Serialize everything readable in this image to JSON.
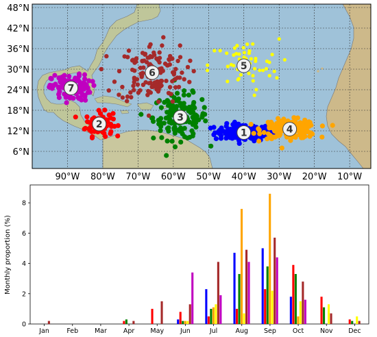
{
  "map": {
    "lat_ticks": [
      "48°N",
      "42°N",
      "36°N",
      "30°N",
      "24°N",
      "18°N",
      "12°N",
      "6°N"
    ],
    "lon_ticks": [
      "90°W",
      "80°W",
      "70°W",
      "60°W",
      "50°W",
      "40°W",
      "30°W",
      "20°W",
      "10°W"
    ],
    "clusters": [
      {
        "id": "1",
        "color": "#0000ff",
        "center": [
          -40,
          11.5
        ],
        "spread": [
          7.5,
          2.2
        ]
      },
      {
        "id": "2",
        "color": "#ff0000",
        "center": [
          -81,
          14
        ],
        "spread": [
          3.5,
          3.2
        ]
      },
      {
        "id": "3",
        "color": "#008000",
        "center": [
          -58,
          16
        ],
        "spread": [
          7,
          6
        ]
      },
      {
        "id": "4",
        "color": "#ffa500",
        "center": [
          -27,
          12.5
        ],
        "spread": [
          7,
          2.5
        ]
      },
      {
        "id": "5",
        "color": "#ffff00",
        "center": [
          -40,
          31
        ],
        "spread": [
          9,
          7
        ]
      },
      {
        "id": "6",
        "color": "#a52a2a",
        "center": [
          -66,
          29
        ],
        "spread": [
          9,
          8
        ]
      },
      {
        "id": "7",
        "color": "#c000c0",
        "center": [
          -89,
          24.5
        ],
        "spread": [
          5,
          3.5
        ]
      }
    ]
  },
  "chart_data": {
    "type": "bar",
    "ylabel": "Monthly proportion (%)",
    "ylim": [
      0,
      9
    ],
    "yticks": [
      0,
      2,
      4,
      6,
      8
    ],
    "categories": [
      "Jan",
      "Feb",
      "Mar",
      "Apr",
      "May",
      "Jun",
      "Jul",
      "Aug",
      "Sep",
      "Oct",
      "Nov",
      "Dec"
    ],
    "series": [
      {
        "cluster": "1",
        "color": "#0000ff",
        "values": [
          0,
          0,
          0,
          0,
          0,
          0.3,
          2.3,
          4.7,
          5.0,
          1.8,
          0,
          0
        ]
      },
      {
        "cluster": "2",
        "color": "#ff0000",
        "values": [
          0,
          0,
          0,
          0.2,
          1.0,
          0.8,
          0.5,
          1.0,
          2.3,
          3.9,
          1.8,
          0.3
        ]
      },
      {
        "cluster": "3",
        "color": "#008000",
        "values": [
          0,
          0,
          0,
          0.3,
          0,
          0.2,
          1.0,
          3.3,
          3.8,
          3.3,
          1.1,
          0.2
        ]
      },
      {
        "cluster": "4",
        "color": "#ffa500",
        "values": [
          0,
          0,
          0,
          0,
          0,
          0.2,
          1.1,
          7.6,
          8.6,
          0.5,
          0,
          0
        ]
      },
      {
        "cluster": "5",
        "color": "#ffff00",
        "values": [
          0,
          0,
          0,
          0,
          0,
          0.2,
          1.3,
          0.7,
          2.2,
          1.5,
          1.3,
          0.5
        ]
      },
      {
        "cluster": "6",
        "color": "#a52a2a",
        "values": [
          0.2,
          0,
          0,
          0.2,
          1.5,
          1.3,
          4.1,
          4.9,
          5.7,
          2.8,
          0.7,
          0.2
        ]
      },
      {
        "cluster": "7",
        "color": "#c000c0",
        "values": [
          0,
          0,
          0,
          0,
          0,
          3.4,
          1.9,
          4.1,
          4.4,
          1.6,
          0,
          0
        ]
      }
    ]
  }
}
